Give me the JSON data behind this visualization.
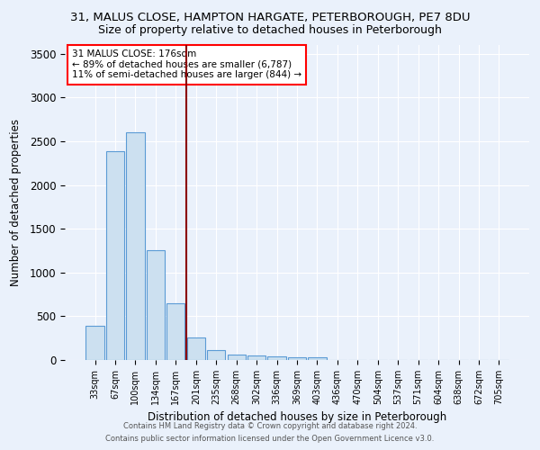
{
  "title": "31, MALUS CLOSE, HAMPTON HARGATE, PETERBOROUGH, PE7 8DU",
  "subtitle": "Size of property relative to detached houses in Peterborough",
  "xlabel": "Distribution of detached houses by size in Peterborough",
  "ylabel": "Number of detached properties",
  "footnote1": "Contains HM Land Registry data © Crown copyright and database right 2024.",
  "footnote2": "Contains public sector information licensed under the Open Government Licence v3.0.",
  "bar_labels": [
    "33sqm",
    "67sqm",
    "100sqm",
    "134sqm",
    "167sqm",
    "201sqm",
    "235sqm",
    "268sqm",
    "302sqm",
    "336sqm",
    "369sqm",
    "403sqm",
    "436sqm",
    "470sqm",
    "504sqm",
    "537sqm",
    "571sqm",
    "604sqm",
    "638sqm",
    "672sqm",
    "705sqm"
  ],
  "bar_values": [
    390,
    2390,
    2600,
    1250,
    650,
    260,
    110,
    60,
    55,
    45,
    35,
    30,
    0,
    0,
    0,
    0,
    0,
    0,
    0,
    0,
    0
  ],
  "bar_color": "#cce0f0",
  "bar_edge_color": "#5b9bd5",
  "vline_x": 4.5,
  "vline_color": "#8b0000",
  "annotation_text": "31 MALUS CLOSE: 176sqm\n← 89% of detached houses are smaller (6,787)\n11% of semi-detached houses are larger (844) →",
  "annotation_box_color": "white",
  "annotation_box_edge": "red",
  "ylim": [
    0,
    3600
  ],
  "yticks": [
    0,
    500,
    1000,
    1500,
    2000,
    2500,
    3000,
    3500
  ],
  "bg_color": "#eaf1fb",
  "plot_bg_color": "#eaf1fb",
  "grid_color": "white",
  "title_fontsize": 9.5,
  "subtitle_fontsize": 9,
  "annotation_fontsize": 7.5
}
